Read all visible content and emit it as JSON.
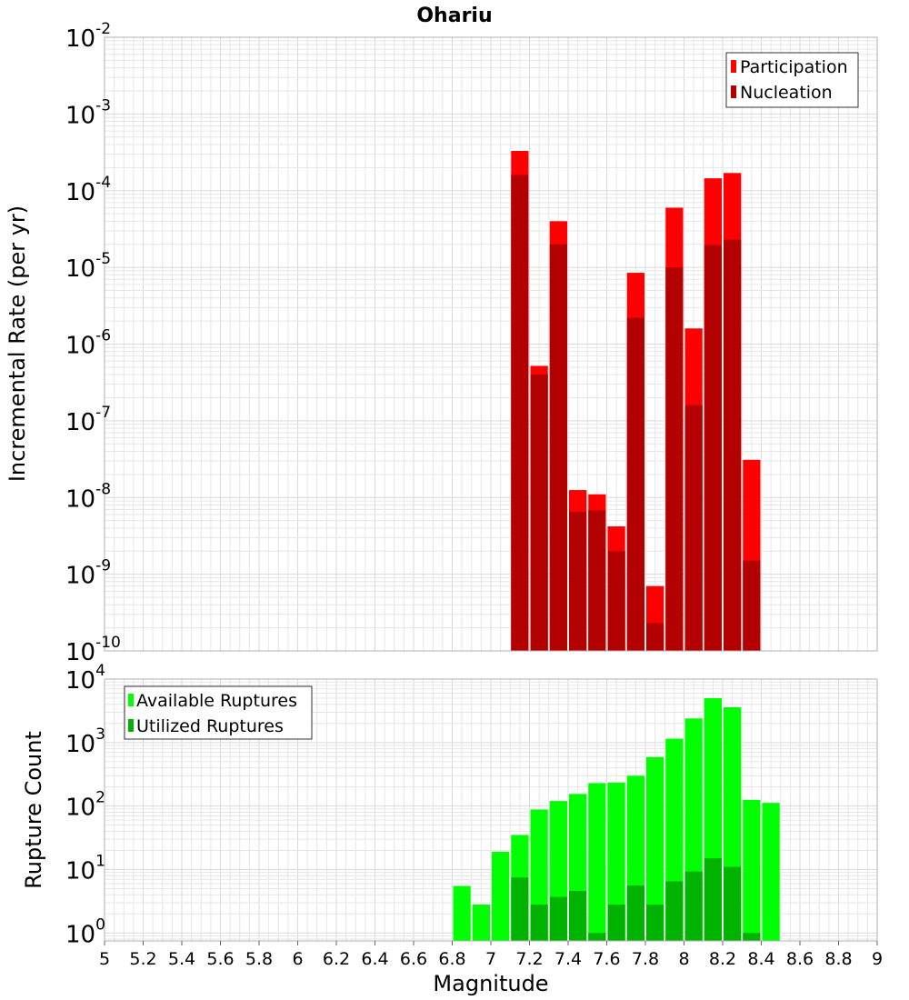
{
  "chart_data": [
    {
      "type": "bar",
      "title": "Ohariu",
      "ylabel": "Incremental Rate (per yr)",
      "xlabel": "",
      "ylim": [
        1e-10,
        0.01
      ],
      "yscale": "log",
      "xlim": [
        5,
        9
      ],
      "grid": true,
      "legend_position": "top-right",
      "y_ticks": [
        {
          "base": "10",
          "exp": "-10"
        },
        {
          "base": "10",
          "exp": "-9"
        },
        {
          "base": "10",
          "exp": "-8"
        },
        {
          "base": "10",
          "exp": "-7"
        },
        {
          "base": "10",
          "exp": "-6"
        },
        {
          "base": "10",
          "exp": "-5"
        },
        {
          "base": "10",
          "exp": "-4"
        },
        {
          "base": "10",
          "exp": "-3"
        },
        {
          "base": "10",
          "exp": "-2"
        }
      ],
      "bar_width": 0.1,
      "x": [
        7.15,
        7.25,
        7.35,
        7.45,
        7.55,
        7.65,
        7.75,
        7.85,
        7.95,
        8.05,
        8.15,
        8.25,
        8.35
      ],
      "series": [
        {
          "name": "Participation",
          "color": "#ff0000",
          "values": [
            0.00033,
            5.2e-07,
            4e-05,
            1.25e-08,
            1.1e-08,
            4.2e-09,
            8.5e-06,
            7e-10,
            6e-05,
            1.6e-06,
            0.000145,
            0.00017,
            3.1e-08
          ]
        },
        {
          "name": "Nucleation",
          "color": "#b30000",
          "values": [
            0.00016,
            4e-07,
            2e-05,
            6.5e-09,
            6.8e-09,
            2e-09,
            2.2e-06,
            2.3e-10,
            1e-05,
            1.6e-07,
            1.95e-05,
            2.3e-05,
            1.5e-09
          ]
        }
      ]
    },
    {
      "type": "bar",
      "title": "",
      "ylabel": "Rupture Count",
      "xlabel": "Magnitude",
      "ylim": [
        0.75,
        10000
      ],
      "yscale": "log",
      "xlim": [
        5,
        9
      ],
      "grid": true,
      "legend_position": "top-left",
      "y_ticks": [
        {
          "base": "10",
          "exp": "0",
          "value": 1
        },
        {
          "base": "10",
          "exp": "1",
          "value": 10
        },
        {
          "base": "10",
          "exp": "2",
          "value": 100
        },
        {
          "base": "10",
          "exp": "3",
          "value": 1000
        },
        {
          "base": "10",
          "exp": "4",
          "value": 10000
        }
      ],
      "x_tick_labels": [
        "5",
        "5.2",
        "5.4",
        "5.6",
        "5.8",
        "6",
        "6.2",
        "6.4",
        "6.6",
        "6.8",
        "7",
        "7.2",
        "7.4",
        "7.6",
        "7.8",
        "8",
        "8.2",
        "8.4",
        "8.6",
        "8.8",
        "9"
      ],
      "bar_width": 0.1,
      "x": [
        6.85,
        6.95,
        7.05,
        7.15,
        7.25,
        7.35,
        7.45,
        7.55,
        7.65,
        7.75,
        7.85,
        7.95,
        8.05,
        8.15,
        8.25,
        8.35,
        8.45
      ],
      "series": [
        {
          "name": "Available Ruptures",
          "color": "#00ff00",
          "values": [
            5.5,
            2.8,
            19,
            35,
            88,
            120,
            155,
            230,
            235,
            300,
            590,
            1150,
            2400,
            5000,
            3600,
            125,
            112
          ]
        },
        {
          "name": "Utilized Ruptures",
          "color": "#00b300",
          "values": [
            null,
            null,
            null,
            7.5,
            2.8,
            3.7,
            4.6,
            1.0,
            2.8,
            5.6,
            2.8,
            6.5,
            9.3,
            15,
            11,
            1.0,
            null
          ]
        }
      ]
    }
  ]
}
